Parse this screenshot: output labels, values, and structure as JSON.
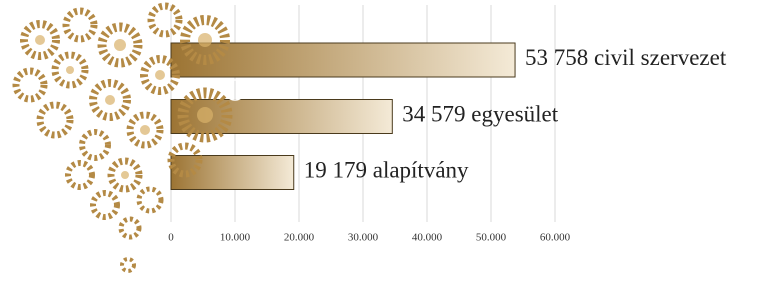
{
  "chart_data": {
    "type": "bar",
    "orientation": "horizontal",
    "categories": [
      "civil szervezet",
      "egyesület",
      "alapítvány"
    ],
    "values": [
      53758,
      34579,
      19179
    ],
    "value_labels": [
      "53 758",
      "34 579",
      "19 179"
    ],
    "color": "#9c7433",
    "xlim": [
      0,
      60000
    ],
    "xticks": [
      0,
      {
        "value": 10000,
        "label": "10.000"
      },
      {
        "value": 20000,
        "label": "20.000"
      },
      {
        "value": 30000,
        "label": "30.000"
      },
      {
        "value": 40000,
        "label": "40.000"
      },
      {
        "value": 50000,
        "label": "50.000"
      },
      {
        "value": 60000,
        "label": "60.000"
      }
    ],
    "grid": true
  }
}
